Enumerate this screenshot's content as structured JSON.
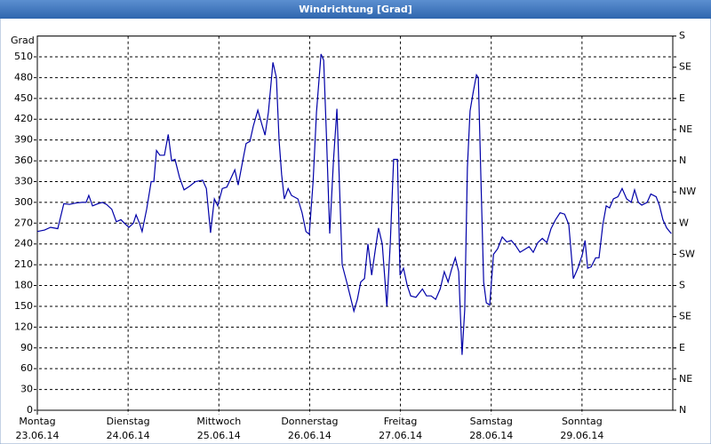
{
  "chart_data": {
    "type": "line",
    "title": "Windrichtung [Grad]",
    "y_label": "Grad",
    "xlim": [
      0,
      168
    ],
    "xticks": [
      {
        "value": 0,
        "label": "Montag",
        "date": "23.06.14"
      },
      {
        "value": 24,
        "label": "Dienstag",
        "date": "24.06.14"
      },
      {
        "value": 48,
        "label": "Mittwoch",
        "date": "25.06.14"
      },
      {
        "value": 72,
        "label": "Donnerstag",
        "date": "26.06.14"
      },
      {
        "value": 96,
        "label": "Freitag",
        "date": "27.06.14"
      },
      {
        "value": 120,
        "label": "Samstag",
        "date": "28.06.14"
      },
      {
        "value": 144,
        "label": "Sonntag",
        "date": "29.06.14"
      }
    ],
    "ylim": [
      0,
      540
    ],
    "yticks": [
      0,
      30,
      60,
      90,
      120,
      150,
      180,
      210,
      240,
      270,
      300,
      330,
      360,
      390,
      420,
      450,
      480,
      510
    ],
    "y2lim": [
      0,
      540
    ],
    "y2ticks": [
      {
        "value": 0,
        "label": "N"
      },
      {
        "value": 45,
        "label": "NE"
      },
      {
        "value": 90,
        "label": "E"
      },
      {
        "value": 135,
        "label": "SE"
      },
      {
        "value": 180,
        "label": "S"
      },
      {
        "value": 225,
        "label": "SW"
      },
      {
        "value": 270,
        "label": "W"
      },
      {
        "value": 315,
        "label": "NW"
      },
      {
        "value": 360,
        "label": "N"
      },
      {
        "value": 405,
        "label": "NE"
      },
      {
        "value": 450,
        "label": "E"
      },
      {
        "value": 495,
        "label": "SE"
      },
      {
        "value": 540,
        "label": "S"
      }
    ],
    "grid": true,
    "series": [
      {
        "color": "#0000a8",
        "x": [
          0,
          1.9,
          3.5,
          5.4,
          7.0,
          8.5,
          10.1,
          11.8,
          12.9,
          13.6,
          14.6,
          16.0,
          17.2,
          18.3,
          19.7,
          20.9,
          22.1,
          23.0,
          24.2,
          25.4,
          26.1,
          27.0,
          27.7,
          28.9,
          30.1,
          30.8,
          31.5,
          32.4,
          33.6,
          34.6,
          35.5,
          36.4,
          37.6,
          38.8,
          40.2,
          41.8,
          43.7,
          44.7,
          45.8,
          46.8,
          47.7,
          48.9,
          50.1,
          51.2,
          52.2,
          53.1,
          54.3,
          55.2,
          56.2,
          57.1,
          58.3,
          59.5,
          60.2,
          61.1,
          62.3,
          63.2,
          63.9,
          64.6,
          65.3,
          66.3,
          67.2,
          68.9,
          70.0,
          71.0,
          71.9,
          72.9,
          73.8,
          75.0,
          75.7,
          76.4,
          77.3,
          78.3,
          79.2,
          79.9,
          80.6,
          81.8,
          82.7,
          83.7,
          84.6,
          85.5,
          86.5,
          87.4,
          88.4,
          89.3,
          90.2,
          91.2,
          92.4,
          93.3,
          94.2,
          95.2,
          95.9,
          96.8,
          97.8,
          98.7,
          100.1,
          101.8,
          102.9,
          104.1,
          105.3,
          106.5,
          107.6,
          108.6,
          109.5,
          110.5,
          111.4,
          112.3,
          113.0,
          113.7,
          114.4,
          115.2,
          116.1,
          116.6,
          117.3,
          118.0,
          118.7,
          119.6,
          120.6,
          121.7,
          122.9,
          124.1,
          125.3,
          126.4,
          127.6,
          128.8,
          130.0,
          131.1,
          132.3,
          133.5,
          134.7,
          135.8,
          137.0,
          138.2,
          139.4,
          140.5,
          141.7,
          142.9,
          144.1,
          144.8,
          145.5,
          146.4,
          147.6,
          148.5,
          149.5,
          150.4,
          151.3,
          152.3,
          153.5,
          154.6,
          155.8,
          157.0,
          157.9,
          158.9,
          159.8,
          161.2,
          162.2,
          163.6,
          164.5,
          165.4,
          166.4,
          167.6
        ],
        "values": [
          258,
          260,
          264,
          262,
          298,
          297,
          299,
          300,
          300,
          310,
          295,
          298,
          300,
          297,
          290,
          272,
          275,
          270,
          264,
          270,
          282,
          270,
          258,
          290,
          330,
          330,
          375,
          368,
          368,
          398,
          360,
          362,
          336,
          318,
          323,
          330,
          332,
          320,
          256,
          305,
          295,
          320,
          322,
          335,
          347,
          325,
          360,
          385,
          388,
          410,
          433,
          410,
          397,
          430,
          502,
          480,
          390,
          340,
          305,
          320,
          310,
          305,
          285,
          258,
          254,
          330,
          430,
          514,
          505,
          400,
          255,
          360,
          435,
          320,
          210,
          185,
          165,
          143,
          160,
          185,
          190,
          240,
          195,
          230,
          263,
          240,
          150,
          240,
          362,
          362,
          195,
          205,
          180,
          165,
          163,
          175,
          165,
          165,
          160,
          175,
          200,
          185,
          203,
          220,
          200,
          80,
          145,
          350,
          432,
          458,
          484,
          480,
          330,
          185,
          155,
          152,
          225,
          233,
          250,
          243,
          245,
          238,
          228,
          232,
          236,
          228,
          242,
          248,
          242,
          262,
          275,
          285,
          283,
          268,
          190,
          205,
          225,
          245,
          205,
          207,
          220,
          220,
          268,
          295,
          292,
          305,
          308,
          320,
          305,
          300,
          318,
          300,
          296,
          300,
          312,
          308,
          295,
          275,
          263,
          255
        ]
      }
    ]
  }
}
